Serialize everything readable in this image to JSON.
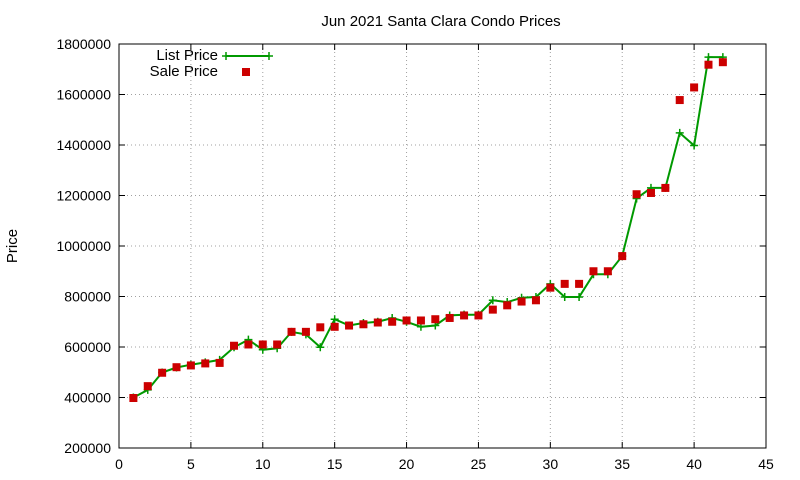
{
  "chart_data": {
    "type": "line",
    "title": "Jun 2021 Santa Clara Condo Prices",
    "xlabel": "",
    "ylabel": "Price",
    "xlim": [
      0,
      45
    ],
    "ylim": [
      200000,
      1800000
    ],
    "x_ticks": [
      0,
      5,
      10,
      15,
      20,
      25,
      30,
      35,
      40,
      45
    ],
    "y_ticks": [
      200000,
      400000,
      600000,
      800000,
      1000000,
      1200000,
      1400000,
      1600000,
      1800000
    ],
    "grid": true,
    "legend_position": "top-left",
    "series": [
      {
        "name": "List Price",
        "style": "line-plus",
        "color": "#009900",
        "x": [
          1,
          2,
          3,
          4,
          5,
          6,
          7,
          8,
          9,
          10,
          11,
          12,
          13,
          14,
          15,
          16,
          17,
          18,
          19,
          20,
          21,
          22,
          23,
          24,
          25,
          26,
          27,
          28,
          29,
          30,
          31,
          32,
          33,
          34,
          35,
          36,
          37,
          38,
          39,
          40,
          41,
          42
        ],
        "values": [
          400000,
          430000,
          499000,
          519000,
          530000,
          539000,
          549000,
          599000,
          629000,
          589000,
          595000,
          660000,
          650000,
          599000,
          710000,
          685000,
          695000,
          700000,
          715000,
          700000,
          680000,
          685000,
          725000,
          728000,
          728000,
          785000,
          778000,
          795000,
          798000,
          850000,
          798000,
          798000,
          888000,
          888000,
          960000,
          1188000,
          1230000,
          1230000,
          1448000,
          1398000,
          1748000,
          1748000
        ]
      },
      {
        "name": "Sale Price",
        "style": "square",
        "color": "#cc0000",
        "x": [
          1,
          2,
          3,
          4,
          5,
          6,
          7,
          8,
          9,
          10,
          11,
          12,
          13,
          14,
          15,
          16,
          17,
          18,
          19,
          20,
          21,
          22,
          23,
          24,
          25,
          26,
          27,
          28,
          29,
          30,
          31,
          32,
          33,
          34,
          35,
          36,
          37,
          38,
          39,
          40,
          41,
          42
        ],
        "values": [
          398000,
          445000,
          498000,
          520000,
          527000,
          535000,
          537000,
          605000,
          610000,
          610000,
          610000,
          660000,
          660000,
          678000,
          680000,
          685000,
          690000,
          697000,
          700000,
          705000,
          705000,
          710000,
          715000,
          725000,
          725000,
          748000,
          765000,
          780000,
          785000,
          835000,
          850000,
          850000,
          900000,
          900000,
          960000,
          1205000,
          1210000,
          1230000,
          1578000,
          1628000,
          1718000,
          1728000
        ]
      }
    ]
  }
}
